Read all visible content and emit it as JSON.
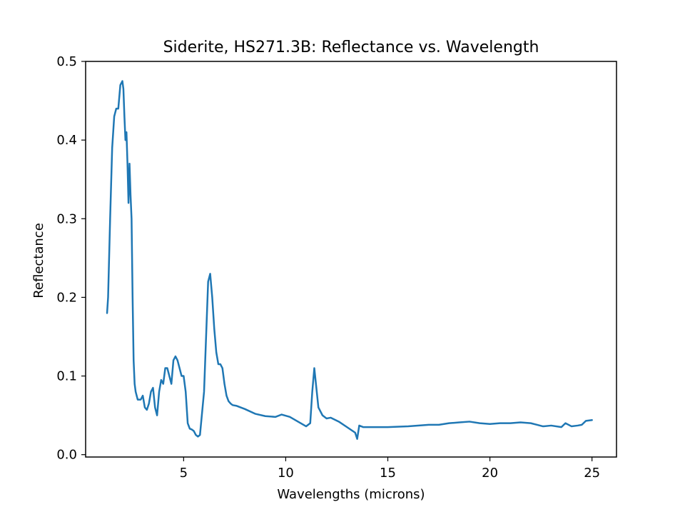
{
  "chart_data": {
    "type": "line",
    "title": "Siderite, HS271.3B: Reflectance vs. Wavelength",
    "xlabel": "Wavelengths (microns)",
    "ylabel": "Reflectance",
    "xlim": [
      0.2,
      26.2
    ],
    "ylim": [
      -0.003,
      0.5
    ],
    "x_ticks": [
      5,
      10,
      15,
      20,
      25
    ],
    "y_ticks": [
      0.0,
      0.1,
      0.2,
      0.3,
      0.4,
      0.5
    ],
    "x_tick_labels": [
      "5",
      "10",
      "15",
      "20",
      "25"
    ],
    "y_tick_labels": [
      "0.0",
      "0.1",
      "0.2",
      "0.3",
      "0.4",
      "0.5"
    ],
    "grid": false,
    "legend": "none",
    "series": [
      {
        "color": "#1f77b4",
        "x": [
          1.25,
          1.3,
          1.4,
          1.5,
          1.6,
          1.7,
          1.8,
          1.9,
          2.0,
          2.05,
          2.1,
          2.15,
          2.2,
          2.25,
          2.3,
          2.35,
          2.4,
          2.45,
          2.5,
          2.55,
          2.6,
          2.65,
          2.7,
          2.75,
          2.8,
          2.85,
          2.9,
          3.0,
          3.1,
          3.2,
          3.3,
          3.4,
          3.5,
          3.6,
          3.7,
          3.8,
          3.9,
          4.0,
          4.1,
          4.2,
          4.3,
          4.4,
          4.5,
          4.6,
          4.7,
          4.8,
          4.9,
          5.0,
          5.1,
          5.2,
          5.3,
          5.4,
          5.5,
          5.6,
          5.7,
          5.8,
          6.0,
          6.2,
          6.3,
          6.4,
          6.5,
          6.6,
          6.7,
          6.8,
          6.9,
          7.0,
          7.1,
          7.2,
          7.3,
          7.4,
          7.6,
          8.0,
          8.5,
          9.0,
          9.5,
          9.8,
          10.2,
          10.6,
          11.0,
          11.2,
          11.3,
          11.4,
          11.5,
          11.6,
          11.8,
          12.0,
          12.2,
          12.6,
          13.0,
          13.4,
          13.5,
          13.6,
          13.8,
          14.5,
          15.0,
          16.0,
          17.0,
          17.5,
          18.0,
          18.5,
          19.0,
          19.5,
          20.0,
          20.5,
          21.0,
          21.5,
          22.0,
          22.3,
          22.6,
          23.0,
          23.5,
          23.7,
          24.0,
          24.3,
          24.5,
          24.7,
          25.0
        ],
        "y": [
          0.18,
          0.2,
          0.3,
          0.39,
          0.43,
          0.44,
          0.44,
          0.47,
          0.475,
          0.465,
          0.43,
          0.4,
          0.41,
          0.37,
          0.32,
          0.37,
          0.33,
          0.3,
          0.2,
          0.12,
          0.09,
          0.08,
          0.075,
          0.07,
          0.07,
          0.07,
          0.07,
          0.075,
          0.06,
          0.057,
          0.065,
          0.08,
          0.085,
          0.06,
          0.05,
          0.08,
          0.095,
          0.09,
          0.11,
          0.11,
          0.1,
          0.09,
          0.12,
          0.125,
          0.12,
          0.11,
          0.1,
          0.1,
          0.08,
          0.04,
          0.033,
          0.032,
          0.03,
          0.025,
          0.023,
          0.025,
          0.08,
          0.22,
          0.23,
          0.2,
          0.16,
          0.13,
          0.115,
          0.115,
          0.11,
          0.09,
          0.075,
          0.068,
          0.065,
          0.063,
          0.062,
          0.058,
          0.052,
          0.049,
          0.048,
          0.051,
          0.048,
          0.042,
          0.036,
          0.04,
          0.08,
          0.11,
          0.085,
          0.06,
          0.05,
          0.046,
          0.047,
          0.042,
          0.035,
          0.028,
          0.02,
          0.037,
          0.035,
          0.035,
          0.035,
          0.036,
          0.038,
          0.038,
          0.04,
          0.041,
          0.042,
          0.04,
          0.039,
          0.04,
          0.04,
          0.041,
          0.04,
          0.038,
          0.036,
          0.037,
          0.035,
          0.04,
          0.036,
          0.037,
          0.038,
          0.043,
          0.044
        ]
      }
    ]
  }
}
